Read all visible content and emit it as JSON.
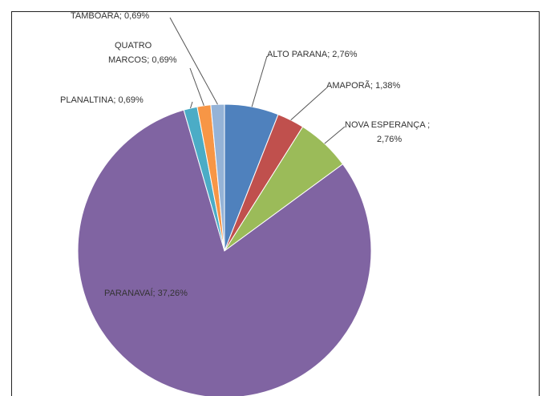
{
  "chart_data": {
    "type": "pie",
    "values": [
      2.76,
      1.38,
      2.76,
      37.26,
      0.69,
      0.69,
      0.69
    ],
    "value_labels": [
      [
        "ALTO PARANA; 2,76%"
      ],
      [
        "AMAPORÃ; 1,38%"
      ],
      [
        "NOVA ESPERANÇA ;",
        "2,76%"
      ],
      [
        "PARANAVAÍ; 37,26%"
      ],
      [
        "PLANALTINA; 0,69%"
      ],
      [
        "QUATRO",
        "MARCOS; 0,69%"
      ],
      [
        "TAMBOARA; 0,69%"
      ]
    ],
    "colors": [
      "#4f81bd",
      "#c0504d",
      "#9bbb59",
      "#8064a2",
      "#4bacc6",
      "#f79646",
      "#95b3d7"
    ]
  }
}
